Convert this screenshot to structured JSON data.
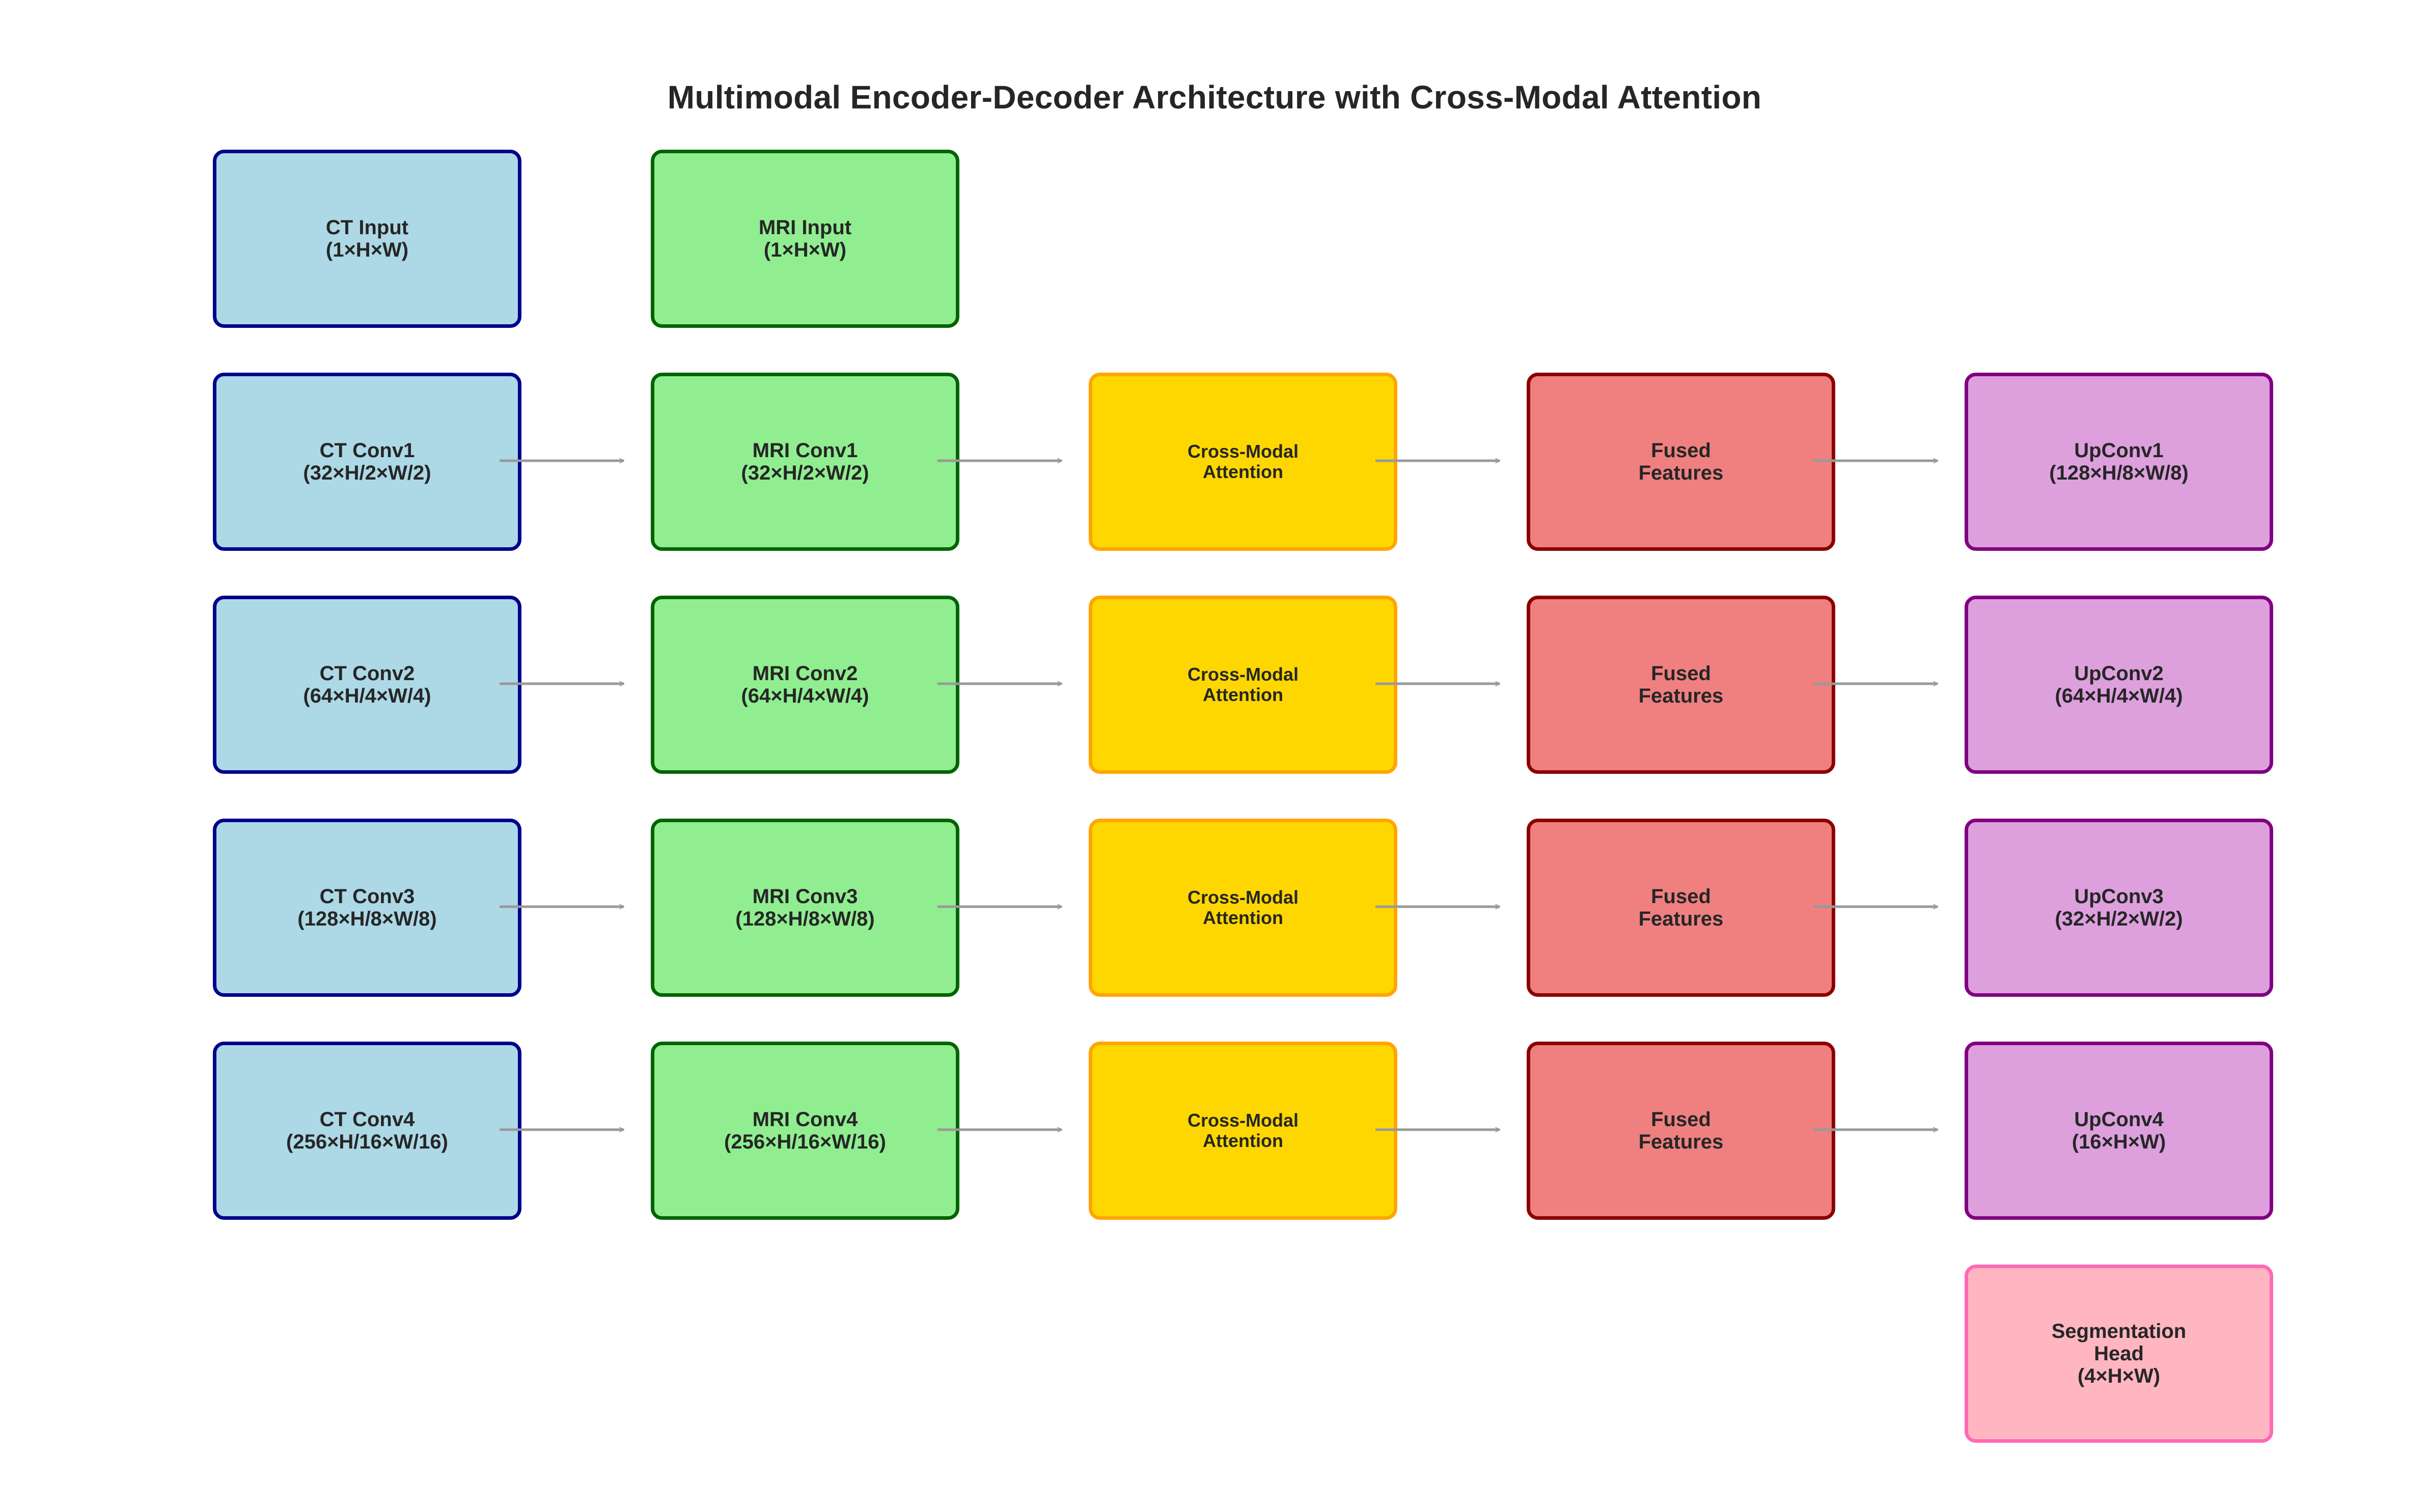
{
  "title": "Multimodal Encoder-Decoder Architecture with Cross-Modal Attention",
  "colors": {
    "ct_fill": "#add8e6",
    "ct_border": "#00008b",
    "mri_fill": "#90ee90",
    "mri_border": "#006400",
    "attention_fill": "#ffd700",
    "attention_border": "#ffa500",
    "fused_fill": "#f08080",
    "fused_border": "#8b0000",
    "decoder_fill": "#dda0dd",
    "decoder_border": "#800080",
    "seg_fill": "#ffb6c1",
    "seg_border": "#ff69b4",
    "arrow": "#999999"
  },
  "inputs": {
    "ct": "CT Input\n(1×H×W)",
    "mri": "MRI Input\n(1×H×W)"
  },
  "stages": [
    {
      "ct": "CT Conv1\n(32×H/2×W/2)",
      "mri": "MRI Conv1\n(32×H/2×W/2)",
      "attention": "Cross-Modal\nAttention",
      "fused": "Fused\nFeatures",
      "decoder": "UpConv1\n(128×H/8×W/8)"
    },
    {
      "ct": "CT Conv2\n(64×H/4×W/4)",
      "mri": "MRI Conv2\n(64×H/4×W/4)",
      "attention": "Cross-Modal\nAttention",
      "fused": "Fused\nFeatures",
      "decoder": "UpConv2\n(64×H/4×W/4)"
    },
    {
      "ct": "CT Conv3\n(128×H/8×W/8)",
      "mri": "MRI Conv3\n(128×H/8×W/8)",
      "attention": "Cross-Modal\nAttention",
      "fused": "Fused\nFeatures",
      "decoder": "UpConv3\n(32×H/2×W/2)"
    },
    {
      "ct": "CT Conv4\n(256×H/16×W/16)",
      "mri": "MRI Conv4\n(256×H/16×W/16)",
      "attention": "Cross-Modal\nAttention",
      "fused": "Fused\nFeatures",
      "decoder": "UpConv4\n(16×H×W)"
    }
  ],
  "head": "Segmentation\nHead\n(4×H×W)"
}
